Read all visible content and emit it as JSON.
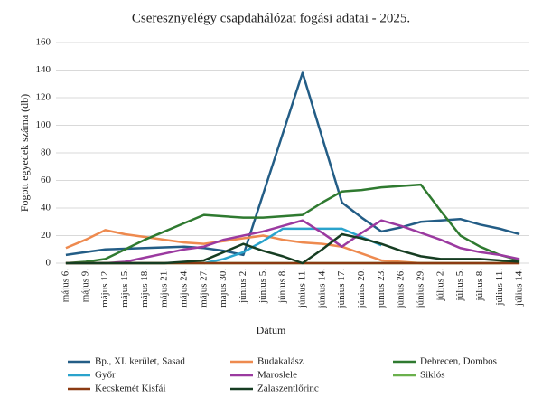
{
  "chart_data": {
    "type": "line",
    "title": "Cseresznyelégy csapdahálózat fogási adatai - 2025.",
    "x_label": "Dátum",
    "y_label": "Fogott egyedek száma (db)",
    "categories": [
      "május 6.",
      "május 9.",
      "május 12.",
      "május 15.",
      "május 18.",
      "május 21.",
      "május 24.",
      "május 27.",
      "május 30.",
      "június 2.",
      "június 5.",
      "június 8.",
      "június 11.",
      "június 14.",
      "június 17.",
      "június 20.",
      "június 23.",
      "június 26.",
      "június 29.",
      "július 2.",
      "július 5.",
      "július 8.",
      "július 11.",
      "július 14."
    ],
    "series": [
      {
        "name": "Bp., XI. kerület, Sasad",
        "color": "#235d86",
        "values": [
          6,
          8,
          10,
          10.5,
          11,
          11.5,
          12,
          11,
          9,
          6,
          50,
          94,
          138,
          91,
          44,
          33,
          23,
          26,
          30,
          31,
          32,
          28,
          25,
          21
        ]
      },
      {
        "name": "Budakalász",
        "color": "#ee8a4f",
        "values": [
          11,
          17,
          24,
          21,
          19,
          17,
          15,
          14,
          16,
          18,
          20,
          17,
          15,
          14,
          12,
          7,
          2,
          1,
          0,
          0,
          0,
          0,
          0,
          0
        ]
      },
      {
        "name": "Debrecen, Dombos",
        "color": "#2f7a30",
        "values": [
          0,
          1,
          3,
          10,
          17,
          23,
          29,
          35,
          34,
          33,
          33,
          34,
          35,
          44,
          52,
          53,
          55,
          56,
          57,
          38,
          20,
          12,
          6,
          2
        ]
      },
      {
        "name": "Győr",
        "color": "#2aa3cc",
        "values": [
          null,
          null,
          null,
          null,
          null,
          null,
          null,
          0,
          3,
          8,
          16,
          25,
          25,
          25,
          25,
          19,
          13,
          null,
          null,
          null,
          null,
          null,
          null,
          null
        ]
      },
      {
        "name": "Maroslele",
        "color": "#9b3aa0",
        "values": [
          0,
          0,
          0,
          1,
          4,
          7,
          10,
          12,
          17,
          20,
          23,
          27,
          31,
          22,
          12,
          22,
          31,
          27,
          22,
          17,
          11,
          8,
          6,
          3
        ]
      },
      {
        "name": "Siklós",
        "color": "#6ab04c",
        "values": [
          0,
          0,
          0,
          0,
          0,
          0,
          0,
          0,
          0,
          0,
          0,
          0,
          0,
          0,
          0,
          0,
          0,
          0,
          0,
          0,
          0,
          0,
          0,
          2
        ]
      },
      {
        "name": "Kecskemét Kisfái",
        "color": "#8b3a12",
        "values": [
          0,
          0,
          0,
          0,
          0,
          0,
          0,
          0,
          0,
          0,
          0,
          0,
          0,
          0,
          0,
          0,
          0,
          0,
          0,
          0,
          0,
          0,
          0,
          0
        ]
      },
      {
        "name": "Zalaszentlőrinc",
        "color": "#163d22",
        "values": [
          0,
          0,
          0,
          0,
          0,
          0,
          1,
          2,
          8,
          14,
          9,
          5,
          0,
          10,
          21,
          18,
          14,
          9,
          5,
          3,
          3,
          3,
          2,
          1
        ]
      }
    ],
    "ylim": [
      0,
      160
    ],
    "yticks": [
      0,
      20,
      40,
      60,
      80,
      100,
      120,
      140,
      160
    ],
    "grid": true,
    "legend": "bottom"
  }
}
